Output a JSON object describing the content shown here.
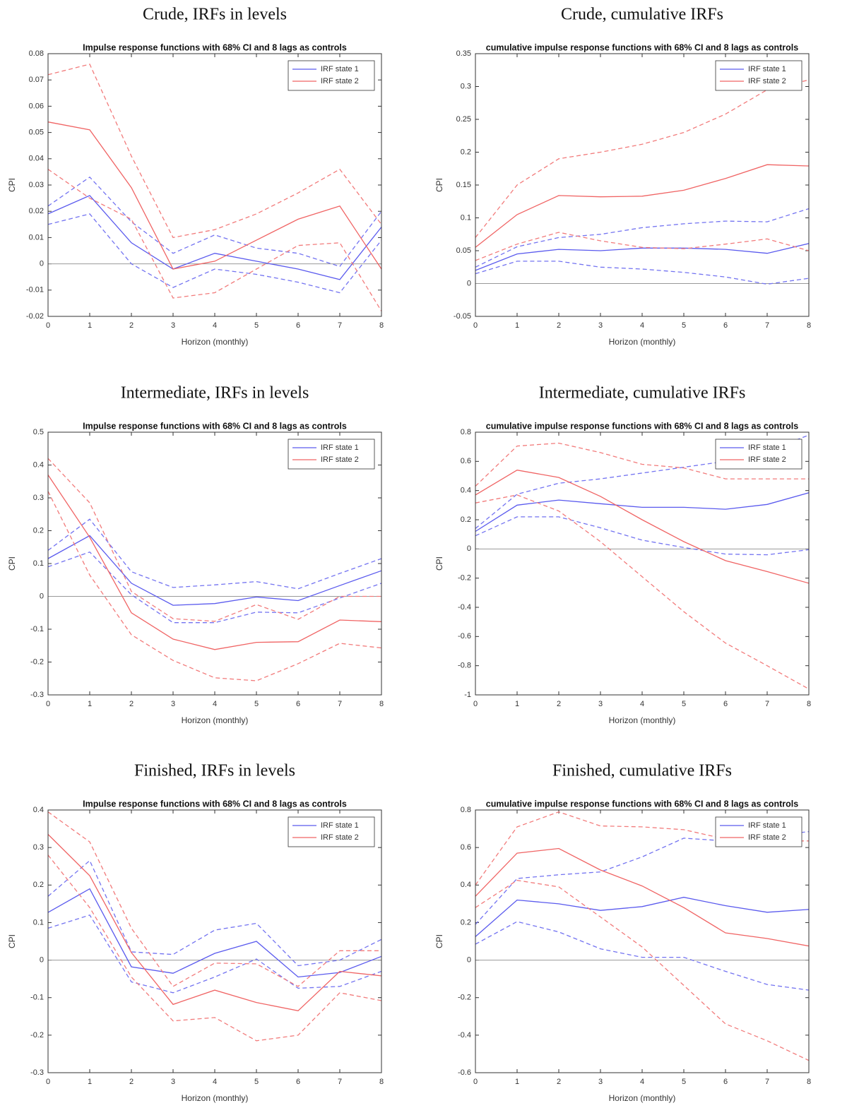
{
  "chart_data": [
    {
      "type": "line",
      "heading": "Crude, IRFs in levels",
      "title": "Impulse response functions with 68% CI and 8 lags as controls",
      "xlabel": "Horizon (monthly)",
      "ylabel": "CPI",
      "x": [
        0,
        1,
        2,
        3,
        4,
        5,
        6,
        7,
        8
      ],
      "xlim": [
        0,
        8
      ],
      "xticks": [
        0,
        1,
        2,
        3,
        4,
        5,
        6,
        7,
        8
      ],
      "ylim": [
        -0.02,
        0.08
      ],
      "yticks": [
        -0.02,
        -0.01,
        0,
        0.01,
        0.02,
        0.03,
        0.04,
        0.05,
        0.06,
        0.07,
        0.08
      ],
      "legend": "northeast",
      "series": [
        {
          "name": "IRF state 1",
          "color": "#5a5aee",
          "values": [
            0.019,
            0.026,
            0.008,
            -0.002,
            0.004,
            0.001,
            -0.002,
            -0.006,
            0.014
          ],
          "upper": [
            0.022,
            0.033,
            0.016,
            0.004,
            0.011,
            0.006,
            0.004,
            -0.001,
            0.02
          ],
          "lower": [
            0.015,
            0.019,
            0.0,
            -0.009,
            -0.002,
            -0.004,
            -0.007,
            -0.011,
            0.009
          ]
        },
        {
          "name": "IRF state 2",
          "color": "#f06464",
          "values": [
            0.054,
            0.051,
            0.029,
            -0.002,
            0.001,
            0.009,
            0.017,
            0.022,
            -0.002
          ],
          "upper": [
            0.072,
            0.076,
            0.041,
            0.01,
            0.013,
            0.019,
            0.027,
            0.036,
            0.015
          ],
          "lower": [
            0.036,
            0.025,
            0.017,
            -0.013,
            -0.011,
            -0.002,
            0.007,
            0.008,
            -0.018
          ]
        }
      ]
    },
    {
      "type": "line",
      "heading": "Crude, cumulative IRFs",
      "title": "cumulative impulse response functions with 68% CI and 8 lags as controls",
      "xlabel": "Horizon (monthly)",
      "ylabel": "CPI",
      "x": [
        0,
        1,
        2,
        3,
        4,
        5,
        6,
        7,
        8
      ],
      "xlim": [
        0,
        8
      ],
      "xticks": [
        0,
        1,
        2,
        3,
        4,
        5,
        6,
        7,
        8
      ],
      "ylim": [
        -0.05,
        0.35
      ],
      "yticks": [
        -0.05,
        0,
        0.05,
        0.1,
        0.15,
        0.2,
        0.25,
        0.3,
        0.35
      ],
      "legend": "northeast",
      "series": [
        {
          "name": "IRF state 1",
          "color": "#5a5aee",
          "values": [
            0.02,
            0.045,
            0.052,
            0.05,
            0.054,
            0.054,
            0.052,
            0.046,
            0.061
          ],
          "upper": [
            0.025,
            0.056,
            0.07,
            0.075,
            0.085,
            0.091,
            0.095,
            0.094,
            0.114
          ],
          "lower": [
            0.015,
            0.034,
            0.034,
            0.025,
            0.022,
            0.017,
            0.01,
            -0.001,
            0.008
          ]
        },
        {
          "name": "IRF state 2",
          "color": "#f06464",
          "values": [
            0.055,
            0.105,
            0.134,
            0.132,
            0.133,
            0.142,
            0.16,
            0.181,
            0.179
          ],
          "upper": [
            0.07,
            0.15,
            0.19,
            0.2,
            0.212,
            0.23,
            0.258,
            0.295,
            0.31
          ],
          "lower": [
            0.035,
            0.06,
            0.078,
            0.065,
            0.055,
            0.053,
            0.06,
            0.068,
            0.05
          ]
        }
      ]
    },
    {
      "type": "line",
      "heading": "Intermediate, IRFs in levels",
      "title": "Impulse response functions with 68% CI and 8 lags as controls",
      "xlabel": "Horizon (monthly)",
      "ylabel": "CPI",
      "x": [
        0,
        1,
        2,
        3,
        4,
        5,
        6,
        7,
        8
      ],
      "xlim": [
        0,
        8
      ],
      "xticks": [
        0,
        1,
        2,
        3,
        4,
        5,
        6,
        7,
        8
      ],
      "ylim": [
        -0.3,
        0.5
      ],
      "yticks": [
        -0.3,
        -0.2,
        -0.1,
        0,
        0.1,
        0.2,
        0.3,
        0.4,
        0.5
      ],
      "legend": "northeast",
      "series": [
        {
          "name": "IRF state 1",
          "color": "#5a5aee",
          "values": [
            0.115,
            0.185,
            0.04,
            -0.027,
            -0.022,
            -0.002,
            -0.013,
            0.033,
            0.078
          ],
          "upper": [
            0.14,
            0.235,
            0.075,
            0.027,
            0.035,
            0.045,
            0.023,
            0.07,
            0.115
          ],
          "lower": [
            0.09,
            0.135,
            0.005,
            -0.08,
            -0.08,
            -0.048,
            -0.05,
            -0.005,
            0.04
          ]
        },
        {
          "name": "IRF state 2",
          "color": "#f06464",
          "values": [
            0.37,
            0.18,
            -0.05,
            -0.13,
            -0.162,
            -0.14,
            -0.138,
            -0.072,
            -0.077
          ],
          "upper": [
            0.42,
            0.285,
            0.015,
            -0.068,
            -0.076,
            -0.025,
            -0.07,
            0.0,
            0.0
          ],
          "lower": [
            0.32,
            0.065,
            -0.117,
            -0.195,
            -0.248,
            -0.257,
            -0.205,
            -0.143,
            -0.157
          ]
        }
      ]
    },
    {
      "type": "line",
      "heading": "Intermediate, cumulative IRFs",
      "title": "cumulative impulse response functions with 68% CI and 8 lags as controls",
      "xlabel": "Horizon (monthly)",
      "ylabel": "CPI",
      "x": [
        0,
        1,
        2,
        3,
        4,
        5,
        6,
        7,
        8
      ],
      "xlim": [
        0,
        8
      ],
      "xticks": [
        0,
        1,
        2,
        3,
        4,
        5,
        6,
        7,
        8
      ],
      "ylim": [
        -1,
        0.8
      ],
      "yticks": [
        -1,
        -0.8,
        -0.6,
        -0.4,
        -0.2,
        0,
        0.2,
        0.4,
        0.6,
        0.8
      ],
      "legend": "northeast",
      "series": [
        {
          "name": "IRF state 1",
          "color": "#5a5aee",
          "values": [
            0.12,
            0.3,
            0.335,
            0.31,
            0.285,
            0.285,
            0.272,
            0.305,
            0.385
          ],
          "upper": [
            0.14,
            0.375,
            0.45,
            0.48,
            0.52,
            0.56,
            0.6,
            0.67,
            0.78
          ],
          "lower": [
            0.09,
            0.22,
            0.22,
            0.145,
            0.06,
            0.01,
            -0.035,
            -0.04,
            -0.005
          ]
        },
        {
          "name": "IRF state 2",
          "color": "#f06464",
          "values": [
            0.37,
            0.54,
            0.49,
            0.36,
            0.2,
            0.05,
            -0.08,
            -0.155,
            -0.235
          ],
          "upper": [
            0.43,
            0.705,
            0.725,
            0.66,
            0.58,
            0.555,
            0.48,
            0.48,
            0.48
          ],
          "lower": [
            0.315,
            0.37,
            0.26,
            0.05,
            -0.19,
            -0.43,
            -0.645,
            -0.8,
            -0.96
          ]
        }
      ]
    },
    {
      "type": "line",
      "heading": "Finished, IRFs in levels",
      "title": "Impulse response functions with 68% CI and 8 lags as controls",
      "xlabel": "Horizon (monthly)",
      "ylabel": "CPI",
      "x": [
        0,
        1,
        2,
        3,
        4,
        5,
        6,
        7,
        8
      ],
      "xlim": [
        0,
        8
      ],
      "xticks": [
        0,
        1,
        2,
        3,
        4,
        5,
        6,
        7,
        8
      ],
      "ylim": [
        -0.3,
        0.4
      ],
      "yticks": [
        -0.3,
        -0.2,
        -0.1,
        0,
        0.1,
        0.2,
        0.3,
        0.4
      ],
      "legend": "northeast",
      "series": [
        {
          "name": "IRF state 1",
          "color": "#5a5aee",
          "values": [
            0.127,
            0.19,
            -0.018,
            -0.035,
            0.018,
            0.05,
            -0.045,
            -0.033,
            0.01
          ],
          "upper": [
            0.17,
            0.265,
            0.022,
            0.015,
            0.08,
            0.098,
            -0.015,
            0.0,
            0.055
          ],
          "lower": [
            0.085,
            0.12,
            -0.058,
            -0.087,
            -0.045,
            0.003,
            -0.075,
            -0.07,
            -0.03
          ]
        },
        {
          "name": "IRF state 2",
          "color": "#f06464",
          "values": [
            0.335,
            0.225,
            0.02,
            -0.118,
            -0.08,
            -0.113,
            -0.135,
            -0.03,
            -0.042
          ],
          "upper": [
            0.395,
            0.315,
            0.085,
            -0.07,
            -0.008,
            -0.01,
            -0.07,
            0.025,
            0.025
          ],
          "lower": [
            0.28,
            0.14,
            -0.045,
            -0.162,
            -0.153,
            -0.215,
            -0.2,
            -0.087,
            -0.108
          ]
        }
      ]
    },
    {
      "type": "line",
      "heading": "Finished, cumulative IRFs",
      "title": "cumulative impulse response functions with 68% CI and 8 lags as controls",
      "xlabel": "Horizon (monthly)",
      "ylabel": "CPI",
      "x": [
        0,
        1,
        2,
        3,
        4,
        5,
        6,
        7,
        8
      ],
      "xlim": [
        0,
        8
      ],
      "xticks": [
        0,
        1,
        2,
        3,
        4,
        5,
        6,
        7,
        8
      ],
      "ylim": [
        -0.6,
        0.8
      ],
      "yticks": [
        -0.6,
        -0.4,
        -0.2,
        0,
        0.2,
        0.4,
        0.6,
        0.8
      ],
      "legend": "northeast",
      "series": [
        {
          "name": "IRF state 1",
          "color": "#5a5aee",
          "values": [
            0.125,
            0.32,
            0.3,
            0.265,
            0.285,
            0.335,
            0.29,
            0.255,
            0.27
          ],
          "upper": [
            0.19,
            0.435,
            0.455,
            0.47,
            0.55,
            0.65,
            0.635,
            0.66,
            0.685
          ],
          "lower": [
            0.085,
            0.205,
            0.15,
            0.06,
            0.015,
            0.015,
            -0.06,
            -0.13,
            -0.16
          ]
        },
        {
          "name": "IRF state 2",
          "color": "#f06464",
          "values": [
            0.34,
            0.57,
            0.595,
            0.48,
            0.395,
            0.28,
            0.145,
            0.115,
            0.075
          ],
          "upper": [
            0.4,
            0.71,
            0.79,
            0.715,
            0.71,
            0.695,
            0.645,
            0.635,
            0.635
          ],
          "lower": [
            0.28,
            0.425,
            0.39,
            0.23,
            0.07,
            -0.135,
            -0.34,
            -0.43,
            -0.535
          ]
        }
      ]
    }
  ]
}
